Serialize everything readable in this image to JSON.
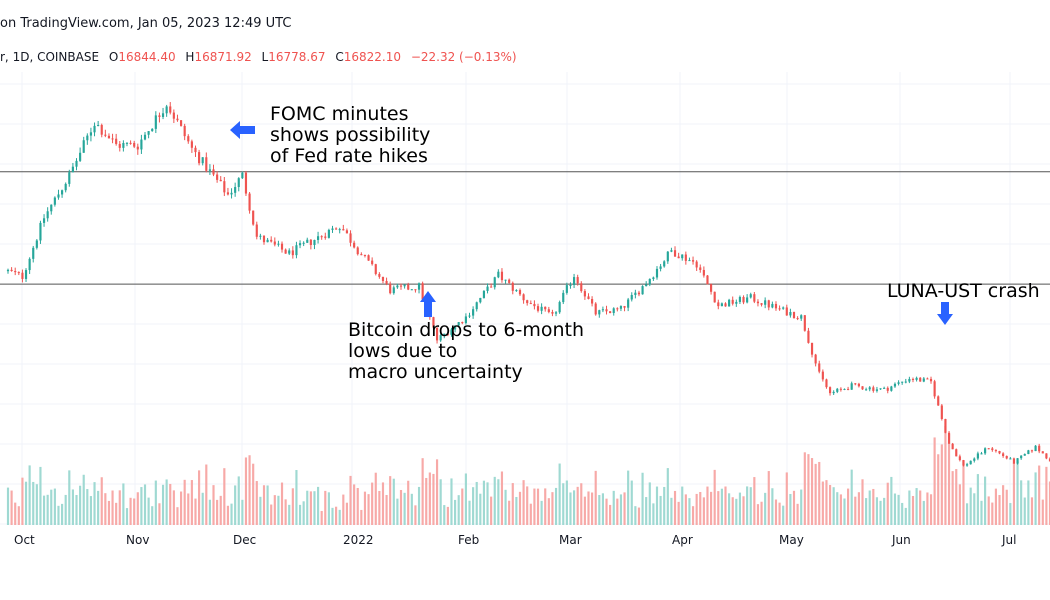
{
  "header": {
    "caption": "on TradingView.com, Jan 05, 2023 12:49 UTC",
    "symbol_prefix": "r, 1D, COINBASE",
    "o_label": "O",
    "o_value": "16844.40",
    "h_label": "H",
    "h_value": "16871.92",
    "l_label": "L",
    "l_value": "16778.67",
    "c_label": "C",
    "c_value": "16822.10",
    "change": "−22.32 (−0.13%)"
  },
  "annotations": {
    "fomc": "FOMC minutes\nshows possibility\nof Fed rate hikes",
    "bitcoin": "Bitcoin drops to 6-month\nlows due to\nmacro uncertainty",
    "luna": "LUNA-UST crash"
  },
  "colors": {
    "up": "#26a69a",
    "down": "#ef5350",
    "arrow": "#2962ff",
    "grid": "#f0f3fa",
    "hline": "#555555"
  },
  "chart_data": {
    "type": "candlestick",
    "x_ticks": [
      "Oct",
      "Nov",
      "Dec",
      "2022",
      "Feb",
      "Mar",
      "Apr",
      "May",
      "Jun",
      "Jul"
    ],
    "horizontal_levels": [
      57500,
      42800
    ],
    "ylim": [
      18500,
      69500
    ],
    "close_path": [
      [
        "2021-09-26",
        44500
      ],
      [
        "2021-09-30",
        43800
      ],
      [
        "2021-10-06",
        51500
      ],
      [
        "2021-10-13",
        57000
      ],
      [
        "2021-10-20",
        64000
      ],
      [
        "2021-10-26",
        61000
      ],
      [
        "2021-11-01",
        61000
      ],
      [
        "2021-11-09",
        66500
      ],
      [
        "2021-11-16",
        60500
      ],
      [
        "2021-11-26",
        54500
      ],
      [
        "2021-11-30",
        57000
      ],
      [
        "2021-12-04",
        49000
      ],
      [
        "2021-12-13",
        46800
      ],
      [
        "2021-12-27",
        50500
      ],
      [
        "2022-01-01",
        47300
      ],
      [
        "2022-01-10",
        42000
      ],
      [
        "2022-01-18",
        42500
      ],
      [
        "2022-01-23",
        35500
      ],
      [
        "2022-01-31",
        38500
      ],
      [
        "2022-02-09",
        44000
      ],
      [
        "2022-02-17",
        40500
      ],
      [
        "2022-02-24",
        38500
      ],
      [
        "2022-03-02",
        44000
      ],
      [
        "2022-03-08",
        39000
      ],
      [
        "2022-03-15",
        39500
      ],
      [
        "2022-03-22",
        43000
      ],
      [
        "2022-03-29",
        47200
      ],
      [
        "2022-04-05",
        45500
      ],
      [
        "2022-04-11",
        40000
      ],
      [
        "2022-04-20",
        41000
      ],
      [
        "2022-04-28",
        39500
      ],
      [
        "2022-05-04",
        38500
      ],
      [
        "2022-05-09",
        31000
      ],
      [
        "2022-05-12",
        28500
      ],
      [
        "2022-05-18",
        29500
      ],
      [
        "2022-05-27",
        29000
      ],
      [
        "2022-06-03",
        30500
      ],
      [
        "2022-06-09",
        30000
      ],
      [
        "2022-06-14",
        22000
      ],
      [
        "2022-06-18",
        19000
      ],
      [
        "2022-06-25",
        21500
      ],
      [
        "2022-07-02",
        19500
      ],
      [
        "2022-07-08",
        21500
      ],
      [
        "2022-07-12",
        19800
      ]
    ]
  }
}
